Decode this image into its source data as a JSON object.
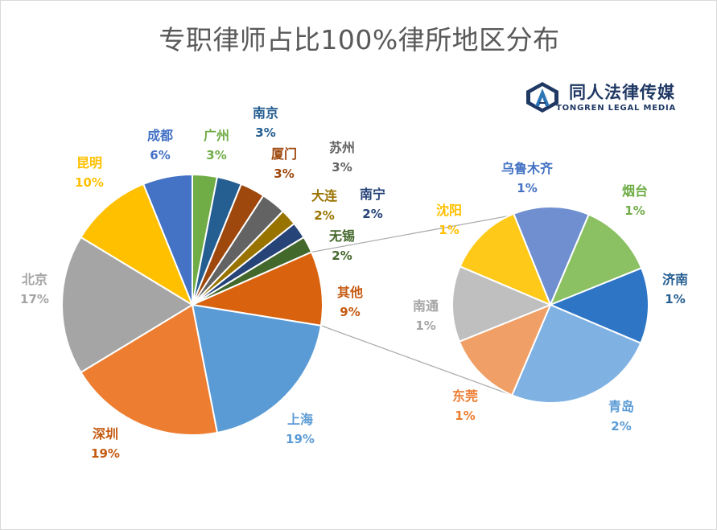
{
  "title": "专职律师占比100%律所地区分布",
  "logo": {
    "icon": "tongren-logo-icon",
    "name_cn": "同人法律传媒",
    "name_en": "TONGREN LEGAL MEDIA"
  },
  "chart_data": [
    {
      "type": "pie",
      "title": "专职律师占比100%律所地区分布",
      "slices": [
        {
          "label": "广州",
          "value": 3,
          "pct_label": "3%",
          "color": "#70ad47",
          "label_color": "#70ad47"
        },
        {
          "label": "南京",
          "value": 3,
          "pct_label": "3%",
          "color": "#255e91",
          "label_color": "#255e91"
        },
        {
          "label": "厦门",
          "value": 3,
          "pct_label": "3%",
          "color": "#9e480e",
          "label_color": "#9e480e"
        },
        {
          "label": "苏州",
          "value": 3,
          "pct_label": "3%",
          "color": "#636363",
          "label_color": "#636363"
        },
        {
          "label": "大连",
          "value": 2,
          "pct_label": "2%",
          "color": "#997300",
          "label_color": "#997300"
        },
        {
          "label": "南宁",
          "value": 2,
          "pct_label": "2%",
          "color": "#264478",
          "label_color": "#264478"
        },
        {
          "label": "无锡",
          "value": 2,
          "pct_label": "2%",
          "color": "#43682b",
          "label_color": "#43682b"
        },
        {
          "label": "其他",
          "value": 9,
          "pct_label": "9%",
          "color": "#d9620f",
          "label_color": "#c55a11"
        },
        {
          "label": "上海",
          "value": 19,
          "pct_label": "19%",
          "color": "#5b9bd5",
          "label_color": "#5b9bd5"
        },
        {
          "label": "深圳",
          "value": 19,
          "pct_label": "19%",
          "color": "#ed7d31",
          "label_color": "#c55a11"
        },
        {
          "label": "北京",
          "value": 17,
          "pct_label": "17%",
          "color": "#a5a5a5",
          "label_color": "#a5a5a5"
        },
        {
          "label": "昆明",
          "value": 10,
          "pct_label": "10%",
          "color": "#ffc000",
          "label_color": "#ffc000"
        },
        {
          "label": "成都",
          "value": 6,
          "pct_label": "6%",
          "color": "#4472c4",
          "label_color": "#4472c4"
        }
      ]
    },
    {
      "type": "pie",
      "title": "其他",
      "slices": [
        {
          "label": "乌鲁木齐",
          "value": 1,
          "pct_label": "1%",
          "color": "#6f8fd0",
          "label_color": "#4472c4"
        },
        {
          "label": "烟台",
          "value": 1,
          "pct_label": "1%",
          "color": "#8bc063",
          "label_color": "#70ad47"
        },
        {
          "label": "济南",
          "value": 1,
          "pct_label": "1%",
          "color": "#2e75c6",
          "label_color": "#255e91"
        },
        {
          "label": "青岛",
          "value": 2,
          "pct_label": "2%",
          "color": "#7fb1e3",
          "label_color": "#5b9bd5"
        },
        {
          "label": "东莞",
          "value": 1,
          "pct_label": "1%",
          "color": "#f0a066",
          "label_color": "#ed7d31"
        },
        {
          "label": "南通",
          "value": 1,
          "pct_label": "1%",
          "color": "#bfbfbf",
          "label_color": "#a5a5a5"
        },
        {
          "label": "沈阳",
          "value": 1,
          "pct_label": "1%",
          "color": "#ffc91a",
          "label_color": "#ffc000"
        }
      ]
    }
  ]
}
